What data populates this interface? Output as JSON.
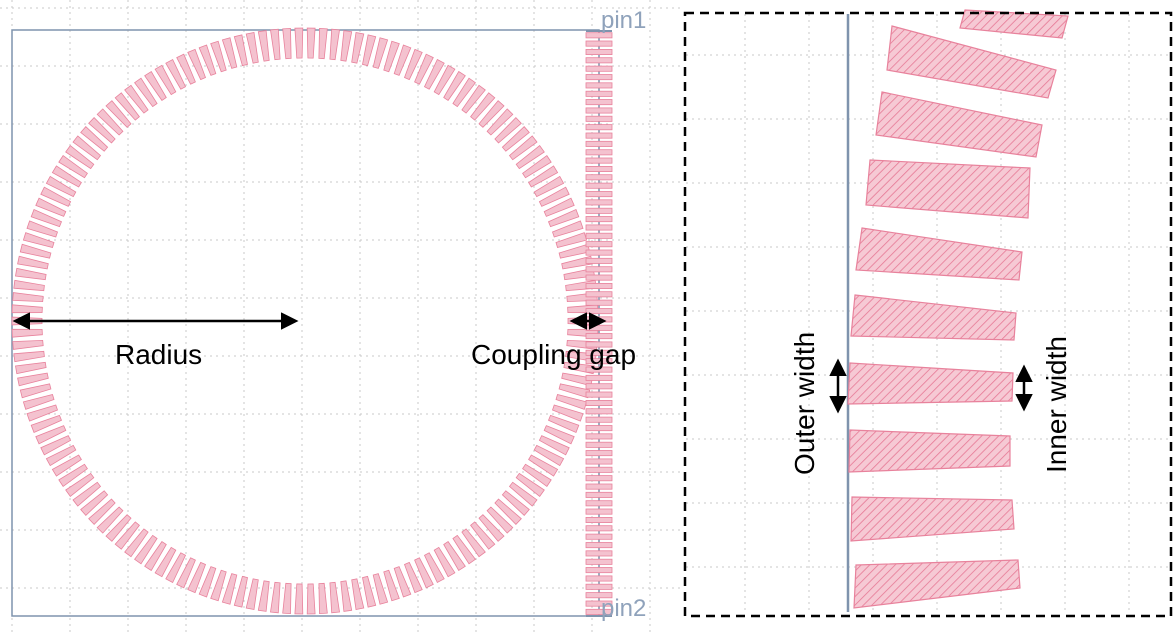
{
  "labels": {
    "radius": "Radius",
    "coupling_gap": "Coupling gap",
    "outer_width": "Outer width",
    "inner_width": "Inner width",
    "pin_top": "pin1",
    "pin_bottom": "pin2"
  },
  "ring": {
    "segment_count": 150
  },
  "bus": {
    "segment_count": 70
  },
  "colors": {
    "segment_fill": "#f4c2cf",
    "segment_stroke": "#e8829c",
    "hatch": "#e67895",
    "waveguide_line": "#7f93ad",
    "grid": "#c8c8c8",
    "pin_text": "#8fa2bb",
    "arrow": "#000000",
    "frame": "#000000"
  }
}
